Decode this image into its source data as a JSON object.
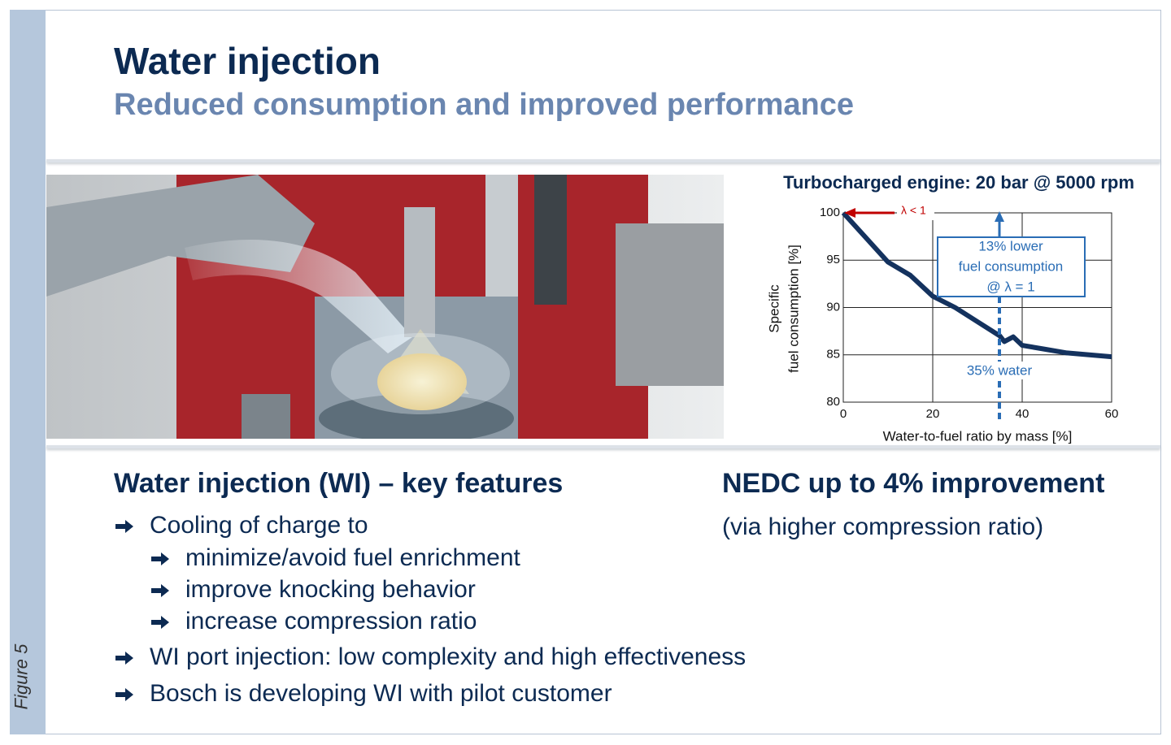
{
  "slide": {
    "title": "Water injection",
    "subtitle": "Reduced consumption and improved performance",
    "figure_label": "Figure 5",
    "features": {
      "heading": "Water injection (WI) – key features",
      "items": [
        {
          "text": "Cooling of charge to",
          "subitems": [
            "minimize/avoid fuel enrichment",
            "improve knocking behavior",
            "increase compression ratio"
          ]
        },
        {
          "text": "WI port injection: low complexity and high effectiveness"
        },
        {
          "text": "Bosch is developing WI with pilot customer"
        }
      ]
    },
    "nedc": {
      "heading": "NEDC up to 4% improvement",
      "note": "(via higher compression ratio)"
    }
  },
  "chart_data": {
    "type": "line",
    "title": "Turbocharged engine: 20 bar @ 5000 rpm",
    "x_label": "Water-to-fuel ratio by mass [%]",
    "y_label": [
      "Specific",
      "fuel consumption [%]"
    ],
    "x": [
      0,
      5,
      10,
      15,
      20,
      25,
      30,
      35,
      36,
      38,
      40,
      45,
      50,
      55,
      60
    ],
    "series": [
      {
        "name": "Specific fuel consumption",
        "color": "#14325e",
        "values": [
          100,
          97.4,
          94.8,
          93.4,
          91.2,
          90.0,
          88.5,
          87.0,
          86.4,
          86.9,
          86.0,
          85.6,
          85.2,
          85.0,
          84.8
        ]
      }
    ],
    "xlim": [
      0,
      60
    ],
    "xticks": [
      0,
      20,
      40,
      60
    ],
    "ylim": [
      80,
      100
    ],
    "yticks": [
      80,
      85,
      90,
      95,
      100
    ],
    "grid": true,
    "annotations": {
      "lambda": "λ < 1",
      "box": [
        "13% lower",
        "fuel consumption",
        "@ λ = 1"
      ],
      "water": "35% water"
    }
  }
}
